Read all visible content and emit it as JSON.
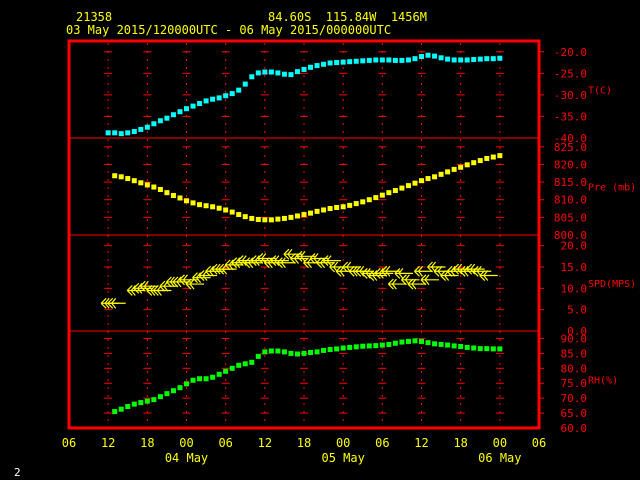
{
  "header": {
    "station_id": "21358",
    "coords": "84.60S  115.84W  1456M",
    "period": "03 May 2015/120000UTC - 06 May 2015/000000UTC"
  },
  "footer": {
    "page_number": "2"
  },
  "colors": {
    "frame": "#ff0000",
    "axis_text": "#ffff00",
    "temp": "#00ffff",
    "pres": "#ffff00",
    "wind": "#ffff00",
    "rh": "#00ff00"
  },
  "chart_data": {
    "type": "scatter",
    "x_axis": {
      "unit": "hours since 03 May 2015 06 UTC",
      "range": [
        0,
        72
      ],
      "ticks": [
        {
          "h": 0,
          "label": "06"
        },
        {
          "h": 6,
          "label": "12"
        },
        {
          "h": 12,
          "label": "18"
        },
        {
          "h": 18,
          "label": "00"
        },
        {
          "h": 24,
          "label": "06"
        },
        {
          "h": 30,
          "label": "12"
        },
        {
          "h": 36,
          "label": "18"
        },
        {
          "h": 42,
          "label": "00"
        },
        {
          "h": 48,
          "label": "06"
        },
        {
          "h": 54,
          "label": "12"
        },
        {
          "h": 60,
          "label": "18"
        },
        {
          "h": 66,
          "label": "00"
        },
        {
          "h": 72,
          "label": "06"
        }
      ],
      "day_labels": [
        {
          "h": 18,
          "label": "04 May"
        },
        {
          "h": 42,
          "label": "05 May"
        },
        {
          "h": 66,
          "label": "06 May"
        }
      ]
    },
    "panels": [
      {
        "name": "temperature",
        "label": "T(C)",
        "color": "#00ffff",
        "kind": "points",
        "ylim": [
          -40,
          -17.5
        ],
        "ticks": [
          -40,
          -35,
          -30,
          -25,
          -20
        ],
        "tick_labels": [
          "-40.0",
          "-35.0",
          "-30.0",
          "-25.0",
          "-20.0"
        ],
        "x": [
          6,
          7,
          8,
          9,
          10,
          11,
          12,
          13,
          14,
          15,
          16,
          17,
          18,
          19,
          20,
          21,
          22,
          23,
          24,
          25,
          26,
          27,
          28,
          29,
          30,
          31,
          32,
          33,
          34,
          35,
          36,
          37,
          38,
          39,
          40,
          41,
          42,
          43,
          44,
          45,
          46,
          47,
          48,
          49,
          50,
          51,
          52,
          53,
          54,
          55,
          56,
          57,
          58,
          59,
          60,
          61,
          62,
          63,
          64,
          65,
          66
        ],
        "y": [
          -38.8,
          -38.8,
          -39,
          -38.8,
          -38.5,
          -38,
          -37.5,
          -36.7,
          -36,
          -35.4,
          -34.6,
          -33.9,
          -33.2,
          -32.6,
          -32,
          -31.4,
          -31,
          -30.7,
          -30.2,
          -29.7,
          -28.9,
          -27.5,
          -25.8,
          -24.9,
          -24.7,
          -24.7,
          -24.9,
          -25.2,
          -25.3,
          -24.6,
          -24.1,
          -23.6,
          -23.2,
          -22.9,
          -22.6,
          -22.5,
          -22.4,
          -22.3,
          -22.2,
          -22.1,
          -22,
          -21.9,
          -21.9,
          -21.9,
          -22,
          -22,
          -21.9,
          -21.6,
          -21.1,
          -20.8,
          -21,
          -21.4,
          -21.7,
          -21.9,
          -21.9,
          -21.9,
          -21.8,
          -21.7,
          -21.6,
          -21.6,
          -21.5
        ]
      },
      {
        "name": "pressure",
        "label": "Pre (mb)",
        "color": "#ffff00",
        "kind": "points",
        "ylim": [
          800,
          827.5
        ],
        "ticks": [
          800,
          805,
          810,
          815,
          820,
          825
        ],
        "tick_labels": [
          "800.0",
          "805.0",
          "810.0",
          "815.0",
          "820.0",
          "825.0"
        ],
        "x": [
          7,
          8,
          9,
          10,
          11,
          12,
          13,
          14,
          15,
          16,
          17,
          18,
          19,
          20,
          21,
          22,
          23,
          24,
          25,
          26,
          27,
          28,
          29,
          30,
          31,
          32,
          33,
          34,
          35,
          36,
          37,
          38,
          39,
          40,
          41,
          42,
          43,
          44,
          45,
          46,
          47,
          48,
          49,
          50,
          51,
          52,
          53,
          54,
          55,
          56,
          57,
          58,
          59,
          60,
          61,
          62,
          63,
          64,
          65,
          66
        ],
        "y": [
          816.8,
          816.5,
          816,
          815.4,
          814.8,
          814.2,
          813.6,
          812.9,
          812,
          811.2,
          810.5,
          809.7,
          809.1,
          808.6,
          808.3,
          808,
          807.6,
          807.1,
          806.5,
          805.8,
          805.2,
          804.7,
          804.4,
          804.3,
          804.3,
          804.5,
          804.7,
          805,
          805.4,
          805.8,
          806.2,
          806.7,
          807.1,
          807.5,
          807.8,
          808,
          808.4,
          808.9,
          809.4,
          810,
          810.6,
          811.3,
          812,
          812.6,
          813.3,
          814,
          814.7,
          815.4,
          816,
          816.5,
          817.2,
          817.9,
          818.6,
          819.2,
          819.9,
          820.5,
          821.1,
          821.7,
          822.1,
          822.5
        ]
      },
      {
        "name": "wind",
        "label": "SPD(MPS)",
        "color": "#ffff00",
        "kind": "barbs",
        "ylim": [
          0,
          22.5
        ],
        "ticks": [
          0,
          5,
          10,
          15,
          20
        ],
        "tick_labels": [
          "0.0",
          "5.0",
          "10.0",
          "15.0",
          "20.0"
        ],
        "x": [
          6,
          7,
          10,
          11,
          12,
          13,
          14,
          15,
          16,
          17,
          18,
          19,
          20,
          21,
          22,
          23,
          24,
          25,
          26,
          27,
          28,
          29,
          30,
          31,
          32,
          33,
          34,
          35,
          36,
          37,
          38,
          39,
          40,
          41,
          42,
          43,
          44,
          45,
          46,
          47,
          48,
          49,
          50,
          51,
          52,
          53,
          54,
          55,
          56,
          57,
          58,
          59,
          60,
          61,
          62,
          63,
          64
        ],
        "y": [
          6.5,
          6.5,
          9.5,
          10,
          10.5,
          9.5,
          9.5,
          10.5,
          11.5,
          11.5,
          12,
          11,
          12.5,
          13,
          14,
          14.5,
          14.5,
          15.5,
          16,
          16.5,
          16,
          16.5,
          17,
          16,
          16.5,
          16,
          18,
          17,
          17.5,
          16,
          17,
          16,
          16.5,
          15,
          14,
          15,
          14,
          14,
          13.5,
          13,
          13.5,
          14,
          11,
          13.5,
          12,
          11,
          14,
          12,
          15,
          14,
          13,
          14,
          14.5,
          14,
          14.5,
          14,
          13
        ]
      },
      {
        "name": "humidity",
        "label": "RH(%)",
        "color": "#00ff00",
        "kind": "points",
        "ylim": [
          60,
          92.5
        ],
        "ticks": [
          60,
          65,
          70,
          75,
          80,
          85,
          90
        ],
        "tick_labels": [
          "60.0",
          "65.0",
          "70.0",
          "75.0",
          "80.0",
          "85.0",
          "90.0"
        ],
        "x": [
          7,
          8,
          9,
          10,
          11,
          12,
          13,
          14,
          15,
          16,
          17,
          18,
          19,
          20,
          21,
          22,
          23,
          24,
          25,
          26,
          27,
          28,
          29,
          30,
          31,
          32,
          33,
          34,
          35,
          36,
          37,
          38,
          39,
          40,
          41,
          42,
          43,
          44,
          45,
          46,
          47,
          48,
          49,
          50,
          51,
          52,
          53,
          54,
          55,
          56,
          57,
          58,
          59,
          60,
          61,
          62,
          63,
          64,
          65,
          66
        ],
        "y": [
          65.5,
          66.3,
          67.2,
          68,
          68.5,
          69,
          69.5,
          70.5,
          71.5,
          72.5,
          73.5,
          74.8,
          76,
          76.5,
          76.5,
          77,
          78,
          79,
          80,
          81,
          81.5,
          82,
          84,
          85.5,
          85.8,
          85.8,
          85.5,
          85,
          84.8,
          85,
          85.3,
          85.5,
          86,
          86.3,
          86.5,
          86.8,
          87,
          87.2,
          87.4,
          87.5,
          87.6,
          87.8,
          88,
          88.4,
          88.8,
          89,
          89.2,
          89,
          88.6,
          88.2,
          88,
          87.8,
          87.5,
          87.3,
          87,
          86.8,
          86.6,
          86.6,
          86.5,
          86.5
        ]
      }
    ]
  }
}
